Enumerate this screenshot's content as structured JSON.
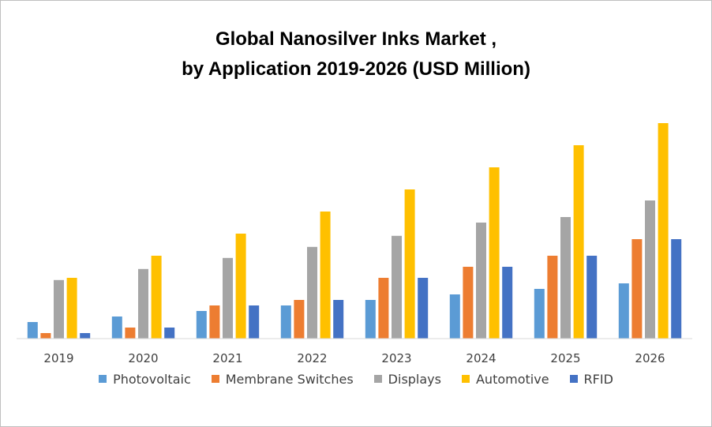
{
  "chart_data": {
    "type": "bar",
    "title_line1": "Global Nanosilver Inks Market ,",
    "title_line2": "by Application 2019-2026 (USD Million)",
    "xlabel": "",
    "ylabel": "",
    "ylim": [
      0,
      20
    ],
    "grid": false,
    "legend_position": "bottom",
    "categories": [
      "2019",
      "2020",
      "2021",
      "2022",
      "2023",
      "2024",
      "2025",
      "2026"
    ],
    "series": [
      {
        "name": "Photovoltaic",
        "color": "#5B9BD5",
        "values": [
          1.5,
          2.0,
          2.5,
          3.0,
          3.5,
          4.0,
          4.5,
          5.0
        ]
      },
      {
        "name": "Membrane Switches",
        "color": "#ED7D31",
        "values": [
          0.5,
          1.0,
          3.0,
          3.5,
          5.5,
          6.5,
          7.5,
          9.0
        ]
      },
      {
        "name": "Displays",
        "color": "#A5A5A5",
        "values": [
          5.3,
          6.3,
          7.3,
          8.3,
          9.3,
          10.5,
          11.0,
          12.5
        ]
      },
      {
        "name": "Automotive",
        "color": "#FFC000",
        "values": [
          5.5,
          7.5,
          9.5,
          11.5,
          13.5,
          15.5,
          17.5,
          19.5
        ]
      },
      {
        "name": "RFID",
        "color": "#4472C4",
        "values": [
          0.5,
          1.0,
          3.0,
          3.5,
          5.5,
          6.5,
          7.5,
          9.0
        ]
      }
    ]
  }
}
